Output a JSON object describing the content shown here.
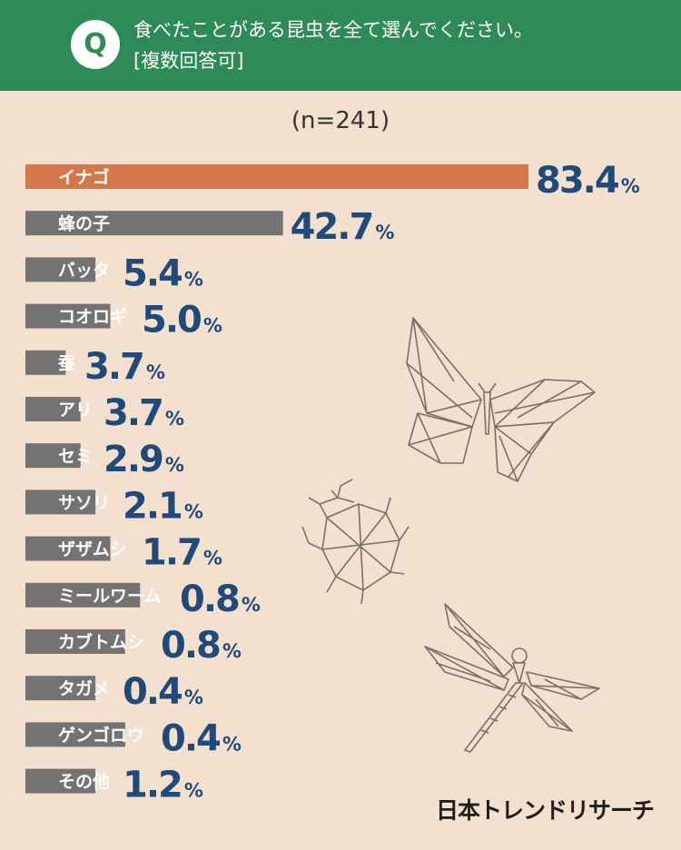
{
  "header": {
    "badge": "Q",
    "question_line1": "食べたことがある昆虫を全て選んでください。",
    "question_line2": "[複数回答可]"
  },
  "sample": "(n=241)",
  "brand": "日本トレンドリサーチ",
  "colors": {
    "header": "#2e8a57",
    "background": "#f4e0cf",
    "highlight_bar": "#d4774a",
    "bar": "#737373",
    "value_text": "#1f4a7a"
  },
  "chart_data": {
    "type": "bar",
    "orientation": "horizontal",
    "title": "食べたことがある昆虫を全て選んでください。[複数回答可]",
    "unit": "%",
    "categories": [
      "イナゴ",
      "蜂の子",
      "バッタ",
      "コオロギ",
      "蚕",
      "アリ",
      "セミ",
      "サソリ",
      "ザザムシ",
      "ミールワーム",
      "カブトムシ",
      "タガメ",
      "ゲンゴロウ",
      "その他"
    ],
    "values": [
      83.4,
      42.7,
      5.4,
      5.0,
      3.7,
      3.7,
      2.9,
      2.1,
      1.7,
      0.8,
      0.8,
      0.4,
      0.4,
      1.2
    ],
    "value_labels": [
      "83.4",
      "42.7",
      "5.4",
      "5.0",
      "3.7",
      "3.7",
      "2.9",
      "2.1",
      "1.7",
      "0.8",
      "0.8",
      "0.4",
      "0.4",
      "1.2"
    ],
    "highlight_index": 0,
    "xlim": [
      0,
      83.4
    ],
    "grid": false,
    "legend": "none"
  },
  "illustrations": [
    "butterfly-icon",
    "beetle-icon",
    "dragonfly-icon"
  ]
}
